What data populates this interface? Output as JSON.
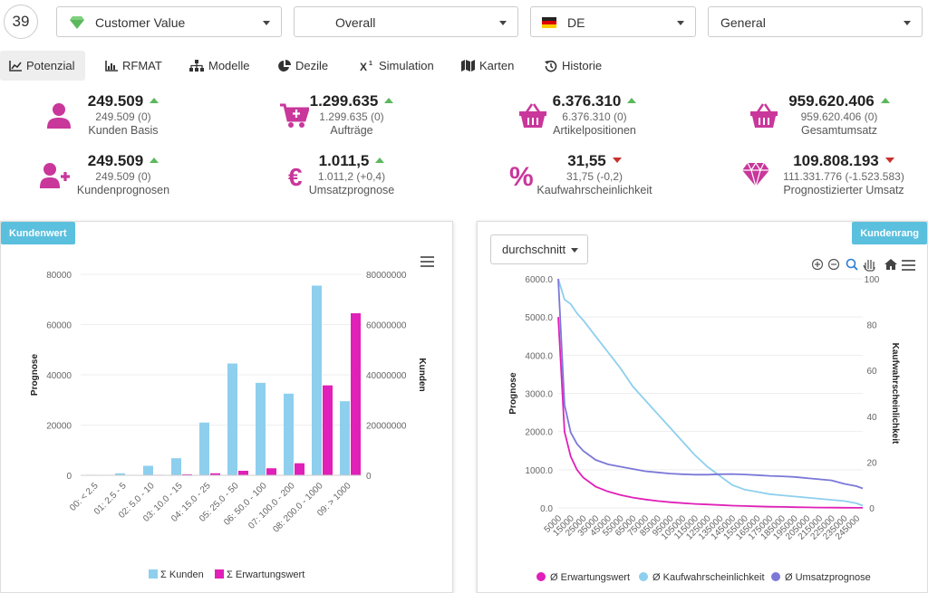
{
  "topbar": {
    "badge": "39",
    "selects": [
      {
        "label": "Customer Value",
        "icon": "diamond-icon"
      },
      {
        "label": "Overall"
      },
      {
        "label": "DE",
        "icon": "german-flag-icon"
      },
      {
        "label": "General"
      }
    ]
  },
  "tabs": [
    {
      "label": "Potenzial",
      "icon": "area-chart-icon",
      "active": true
    },
    {
      "label": "RFMAT",
      "icon": "bar-chart-icon"
    },
    {
      "label": "Modelle",
      "icon": "sitemap-icon"
    },
    {
      "label": "Dezile",
      "icon": "pie-chart-icon"
    },
    {
      "label": "Simulation",
      "icon": "superscript-x-icon"
    },
    {
      "label": "Karten",
      "icon": "map-icon"
    },
    {
      "label": "Historie",
      "icon": "history-icon"
    }
  ],
  "kpis": [
    {
      "value": "249.509",
      "sub": "249.509 (0)",
      "label": "Kunden Basis",
      "trend": "up",
      "icon": "user-icon"
    },
    {
      "value": "1.299.635",
      "sub": "1.299.635 (0)",
      "label": "Aufträge",
      "trend": "up",
      "icon": "cart-plus-icon"
    },
    {
      "value": "6.376.310",
      "sub": "6.376.310 (0)",
      "label": "Artikelpositionen",
      "trend": "up",
      "icon": "basket-icon"
    },
    {
      "value": "959.620.406",
      "sub": "959.620.406 (0)",
      "label": "Gesamtumsatz",
      "trend": "up",
      "icon": "basket-icon"
    },
    {
      "value": "249.509",
      "sub": "249.509 (0)",
      "label": "Kundenprognosen",
      "trend": "up",
      "icon": "user-plus-icon"
    },
    {
      "value": "1.011,5",
      "sub": "1.011,2 (+0,4)",
      "label": "Umsatzprognose",
      "trend": "up",
      "icon": "euro-icon"
    },
    {
      "value": "31,55",
      "sub": "31,75 (-0,2)",
      "label": "Kaufwahrscheinlichkeit",
      "trend": "down",
      "icon": "percent-icon"
    },
    {
      "value": "109.808.193",
      "sub": "111.331.776 (-1.523.583)",
      "label": "Prognostizierter Umsatz",
      "trend": "down",
      "icon": "diamond-icon"
    }
  ],
  "colors": {
    "accent": "#c9379b",
    "up": "#5cb85c",
    "down": "#c9302c",
    "tag": "#5bc0de",
    "kunden": "#8ecfee",
    "erwartung": "#e020b8",
    "kauf": "#8ecfee",
    "umsatz": "#7b78d8"
  },
  "left_panel": {
    "tag": "Kundenwert"
  },
  "right_panel": {
    "tag": "Kundenrang",
    "dropdown": "durchschnitt"
  },
  "chart_data": [
    {
      "type": "bar",
      "categories": [
        "00: < 2.5",
        "01: 2.5 - 5",
        "02: 5.0 - 10",
        "03: 10.0 - 15",
        "04: 15.0 - 25",
        "05: 25.0 - 50",
        "06: 50.0 - 100",
        "07: 100.0 - 200",
        "08: 200.0 - 1000",
        "09: > 1000"
      ],
      "series": [
        {
          "name": "Σ Kunden",
          "axis": "left",
          "values": [
            200,
            800,
            3800,
            6800,
            21000,
            44500,
            36800,
            32500,
            75500,
            29500
          ]
        },
        {
          "name": "Σ Erwartungswert",
          "axis": "right",
          "values": [
            0,
            100000,
            200000,
            400000,
            800000,
            1800000,
            2800000,
            4800000,
            35800000,
            64500000
          ]
        }
      ],
      "ylabel": "Prognose",
      "y2label": "Kunden",
      "ylim": [
        0,
        80000
      ],
      "y2lim": [
        0,
        80000000
      ],
      "yticks": [
        "0",
        "20000",
        "40000",
        "60000",
        "80000"
      ],
      "y2ticks": [
        "0",
        "20000000",
        "40000000",
        "60000000",
        "80000000"
      ],
      "legend": "bottom"
    },
    {
      "type": "line",
      "x": [
        5000,
        10000,
        15000,
        20000,
        25000,
        35000,
        45000,
        55000,
        65000,
        75000,
        85000,
        95000,
        105000,
        115000,
        125000,
        135000,
        145000,
        155000,
        165000,
        175000,
        185000,
        195000,
        205000,
        215000,
        225000,
        235000,
        245000,
        250000
      ],
      "xticks": [
        "5000",
        "15000",
        "25000",
        "35000",
        "45000",
        "55000",
        "65000",
        "75000",
        "85000",
        "95000",
        "105000",
        "115000",
        "125000",
        "135000",
        "145000",
        "155000",
        "165000",
        "175000",
        "185000",
        "195000",
        "205000",
        "215000",
        "225000",
        "235000",
        "245000"
      ],
      "series": [
        {
          "name": "Ø Erwartungswert",
          "axis": "left",
          "values": [
            5000,
            2000,
            1350,
            1000,
            800,
            560,
            430,
            340,
            270,
            220,
            180,
            150,
            125,
            105,
            90,
            75,
            60,
            50,
            40,
            30,
            25,
            20,
            15,
            10,
            8,
            5,
            3,
            2
          ]
        },
        {
          "name": "Ø Kaufwahrscheinlichkeit",
          "axis": "right",
          "values": [
            100,
            91,
            89,
            85,
            82,
            75,
            68,
            61,
            53,
            47,
            41,
            35,
            29,
            23,
            18,
            14,
            10,
            8,
            7,
            6,
            5.5,
            5,
            4.5,
            4,
            3.5,
            3,
            2,
            1
          ]
        },
        {
          "name": "Ø Umsatzprognose",
          "axis": "right",
          "values": [
            100,
            45,
            33,
            28,
            25,
            21,
            19,
            18,
            17,
            16,
            15.5,
            15,
            14.7,
            14.5,
            14.5,
            14.7,
            14.8,
            14.6,
            14.3,
            14,
            13.8,
            13.5,
            13,
            12.5,
            12,
            10.5,
            9.5,
            8.5
          ]
        }
      ],
      "ylabel": "Prognose",
      "y2label": "Kaufwahrscheinlichkeit",
      "ylim": [
        0,
        6000
      ],
      "y2lim": [
        0,
        100
      ],
      "yticks": [
        "0.0",
        "1000.0",
        "2000.0",
        "3000.0",
        "4000.0",
        "5000.0",
        "6000.0"
      ],
      "y2ticks": [
        "0",
        "20",
        "40",
        "60",
        "80",
        "100"
      ],
      "legend": "bottom"
    }
  ]
}
